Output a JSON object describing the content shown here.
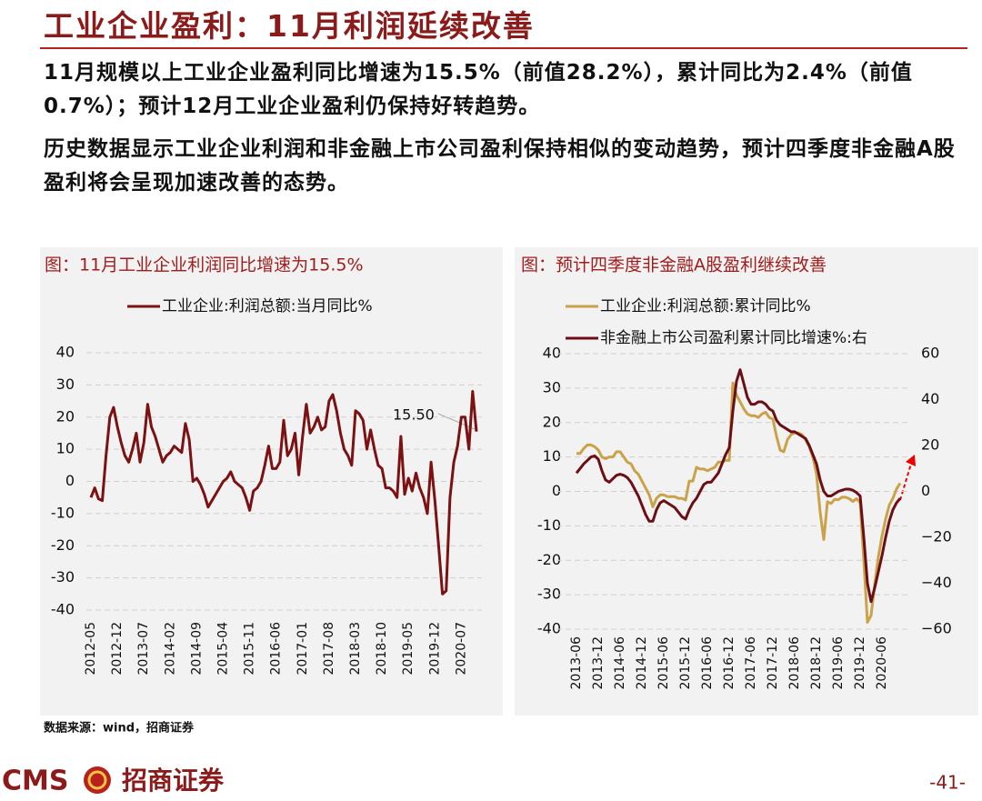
{
  "header": {
    "title": "工业企业盈利：11月利润延续改善"
  },
  "body": {
    "paragraphs": [
      "11月规模以上工业企业盈利同比增速为15.5%（前值28.2%），累计同比为2.4%（前值0.7%）；预计12月工业企业盈利仍保持好转趋势。",
      "历史数据显示工业企业利润和非金融上市公司盈利保持相似的变动趋势，预计四季度非金融A股盈利将会呈现加速改善的态势。"
    ]
  },
  "chart_data": [
    {
      "type": "line",
      "title": "图：11月工业企业利润同比增速为15.5%",
      "categories": [
        "2012-05",
        null,
        null,
        null,
        null,
        null,
        null,
        "2012-12",
        null,
        null,
        null,
        null,
        null,
        null,
        "2013-07",
        null,
        null,
        null,
        null,
        null,
        null,
        "2014-02",
        null,
        null,
        null,
        null,
        null,
        null,
        "2014-09",
        null,
        null,
        null,
        null,
        null,
        null,
        "2015-04",
        null,
        null,
        null,
        null,
        null,
        null,
        "2015-11",
        null,
        null,
        null,
        null,
        null,
        null,
        "2016-06",
        null,
        null,
        null,
        null,
        null,
        null,
        "2017-01",
        null,
        null,
        null,
        null,
        null,
        null,
        "2017-08",
        null,
        null,
        null,
        null,
        null,
        null,
        "2018-03",
        null,
        null,
        null,
        null,
        null,
        null,
        "2018-10",
        null,
        null,
        null,
        null,
        null,
        null,
        "2019-05",
        null,
        null,
        null,
        null,
        null,
        null,
        "2019-12",
        null,
        null,
        null,
        null,
        null,
        null,
        "2020-07",
        null,
        null,
        null,
        null
      ],
      "series": [
        {
          "name": "工业企业:利润总额:当月同比%",
          "color": "#7b1113",
          "values": [
            -5,
            -2,
            -5.4,
            -6,
            8,
            20,
            23,
            17,
            12,
            8,
            6,
            10,
            15,
            6,
            12,
            24,
            17,
            14,
            10,
            6,
            8,
            9,
            11,
            10,
            9,
            18,
            13,
            0,
            1,
            -1,
            -4,
            -8,
            -6,
            -4,
            -2,
            0,
            1,
            3,
            0,
            -1,
            -2,
            -5,
            -9,
            -3,
            -2,
            0,
            5,
            11,
            4,
            4,
            6,
            19,
            8,
            10,
            15,
            2,
            14,
            24,
            15,
            17,
            20,
            16,
            17,
            25,
            27,
            22,
            15,
            10,
            8,
            5,
            22,
            21,
            19,
            10,
            16,
            10,
            5,
            4,
            -2,
            -2,
            -3,
            -5,
            14,
            -4,
            1,
            -3,
            2.6,
            -2,
            -5,
            -10,
            6,
            -6,
            -20,
            -35,
            -34,
            -5,
            6,
            11,
            20,
            20,
            10,
            28,
            15.5
          ]
        }
      ],
      "annotation": "15.50",
      "ylim": [
        -40,
        40
      ],
      "yticks": [
        -40,
        -30,
        -20,
        -10,
        0,
        10,
        20,
        30,
        40
      ],
      "grid": true
    },
    {
      "type": "line",
      "title": "图：预计四季度非金融A股盈利继续改善",
      "categories": [
        "2013-06",
        null,
        null,
        null,
        null,
        null,
        "2013-12",
        null,
        null,
        null,
        null,
        null,
        "2014-06",
        null,
        null,
        null,
        null,
        null,
        "2014-12",
        null,
        null,
        null,
        null,
        null,
        "2015-06",
        null,
        null,
        null,
        null,
        null,
        "2015-12",
        null,
        null,
        null,
        null,
        null,
        "2016-06",
        null,
        null,
        null,
        null,
        null,
        "2016-12",
        null,
        null,
        null,
        null,
        null,
        "2017-06",
        null,
        null,
        null,
        null,
        null,
        "2017-12",
        null,
        null,
        null,
        null,
        null,
        "2018-06",
        null,
        null,
        null,
        null,
        null,
        "2018-12",
        null,
        null,
        null,
        null,
        null,
        "2019-06",
        null,
        null,
        null,
        null,
        null,
        "2019-12",
        null,
        null,
        null,
        null,
        null,
        "2020-06",
        null,
        null,
        null,
        null,
        null
      ],
      "series": [
        {
          "name": "工业企业:利润总额:累计同比%",
          "color": "#c9a24a",
          "values": [
            11,
            11,
            12.5,
            13.5,
            13.5,
            13,
            12,
            10,
            9.5,
            10,
            10,
            11.5,
            11.5,
            10,
            8.5,
            8,
            6,
            5,
            3,
            1,
            -1,
            -4.5,
            -2,
            -1,
            -1,
            -1.5,
            -1.5,
            -1.5,
            -2,
            -2,
            -2.5,
            3,
            3,
            7,
            6.5,
            6.5,
            6,
            6.5,
            7,
            8.5,
            8.5,
            9,
            9,
            31.5,
            28,
            26,
            24,
            22.5,
            22,
            22,
            21.5,
            22.5,
            23,
            21.5,
            21,
            16,
            12,
            11.5,
            15,
            16.5,
            17,
            17,
            16.5,
            15,
            13,
            10,
            5,
            -6,
            -14,
            -3,
            -3.5,
            -2.3,
            -2.4,
            -1.7,
            -1.7,
            -2.1,
            -2.9,
            -2.1,
            -3.3,
            -20,
            -38,
            -36,
            -27,
            -19,
            -13,
            -8,
            -4,
            -2,
            0.7,
            2.4
          ]
        },
        {
          "name": "非金融上市公司盈利累计同比增速%:右",
          "color": "#6b0f14",
          "axis": "y2",
          "values": [
            8,
            10,
            12,
            13.5,
            15,
            15.5,
            14,
            9,
            5,
            4,
            5.5,
            7,
            7.5,
            7,
            6,
            4,
            1,
            -2,
            -6,
            -10,
            -13,
            -13,
            -8,
            -5,
            -4,
            -5,
            -6,
            -7,
            -9,
            -11,
            -12,
            -8,
            -5,
            -3,
            0,
            3,
            4,
            4,
            6,
            8,
            12,
            16,
            19,
            35,
            48,
            53,
            47,
            41,
            38,
            38,
            39,
            39,
            38,
            36,
            35,
            31,
            29,
            28,
            27,
            26,
            26,
            25,
            24,
            23,
            20,
            16,
            12,
            5,
            0,
            -2,
            -2,
            -1,
            0,
            0.5,
            1,
            1,
            0.5,
            -0.5,
            -2,
            -20,
            -40,
            -48,
            -42,
            -35,
            -28,
            -20,
            -13,
            -8,
            -5,
            -3
          ]
        }
      ],
      "ylim": [
        -40,
        40
      ],
      "yticks": [
        -40,
        -30,
        -20,
        -10,
        0,
        10,
        20,
        30,
        40
      ],
      "y2lim": [
        -60,
        60
      ],
      "y2ticks": [
        {
          "value": -60,
          "label": "−60"
        },
        {
          "value": -40,
          "label": "−40"
        },
        {
          "value": -20,
          "label": "−20"
        },
        0,
        20,
        40,
        60
      ],
      "grid": true
    }
  ],
  "source": "数据来源：wind，招商证券",
  "footer": {
    "logo": "CMS",
    "company": "招商证券",
    "page": "-41-"
  }
}
